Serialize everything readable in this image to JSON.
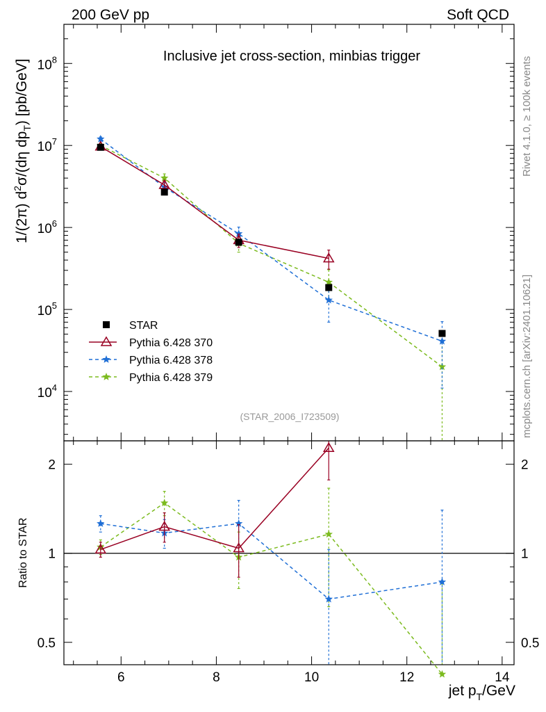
{
  "header": {
    "left": "200 GeV pp",
    "right": "Soft QCD"
  },
  "side_labels": {
    "rivet": "Rivet 4.1.0, ≥ 100k events",
    "mcplots": "mcplots.cern.ch [arXiv:2401.10621]"
  },
  "colors": {
    "star": "#000000",
    "p370": "#990022",
    "p378": "#1f6fd6",
    "p379": "#7cbb1f"
  },
  "chart_data": [
    {
      "type": "line",
      "title": "Inclusive jet cross-section, minbias trigger",
      "watermark": "(STAR_2006_I723509)",
      "xlabel": "jet p_T/GeV",
      "ylabel": "1/(2π)  d²σ/(dη dp_T) [pb/GeV]",
      "yscale": "log",
      "xlim": [
        4.8,
        14.25
      ],
      "ylim": [
        2500,
        300000000
      ],
      "xticks": [
        6,
        8,
        10,
        12,
        14
      ],
      "yticks": [
        {
          "value": 10000,
          "label": "10^4"
        },
        {
          "value": 100000,
          "label": "10^5"
        },
        {
          "value": 1000000,
          "label": "10^6"
        },
        {
          "value": 10000000,
          "label": "10^7"
        },
        {
          "value": 100000000,
          "label": "10^8"
        }
      ],
      "legend": {
        "position": "bottom-left",
        "entries": [
          {
            "key": "star",
            "label": "STAR"
          },
          {
            "key": "p370",
            "label": "Pythia 6.428 370"
          },
          {
            "key": "p378",
            "label": "Pythia 6.428 378"
          },
          {
            "key": "p379",
            "label": "Pythia 6.428 379"
          }
        ]
      },
      "series": [
        {
          "key": "star",
          "name": "STAR",
          "marker": "square",
          "line": "none",
          "x": [
            5.57,
            6.91,
            8.47,
            10.36,
            12.74
          ],
          "y": [
            9500000,
            2700000,
            660000,
            185000,
            51000
          ],
          "err": [
            0,
            0,
            0,
            0,
            0
          ]
        },
        {
          "key": "p370",
          "name": "Pythia 6.428 370",
          "marker": "triangle",
          "line": "solid",
          "x": [
            5.57,
            6.91,
            8.47,
            10.36
          ],
          "y": [
            9700000,
            3300000,
            700000,
            420000
          ],
          "err": [
            600000,
            400000,
            130000,
            110000
          ]
        },
        {
          "key": "p378",
          "name": "Pythia 6.428 378",
          "marker": "star",
          "line": "dashed",
          "x": [
            5.57,
            6.91,
            8.47,
            10.36,
            12.74
          ],
          "y": [
            12000000,
            3100000,
            840000,
            130000,
            41000
          ],
          "err": [
            700000,
            400000,
            170000,
            60000,
            30000
          ]
        },
        {
          "key": "p379",
          "name": "Pythia 6.428 379",
          "marker": "star",
          "line": "dashed",
          "x": [
            5.57,
            6.91,
            8.47,
            10.36,
            12.74
          ],
          "y": [
            10000000,
            4000000,
            640000,
            215000,
            20000
          ],
          "err": [
            600000,
            500000,
            140000,
            90000,
            20000
          ]
        }
      ]
    },
    {
      "type": "line",
      "title": "",
      "xlabel": "jet p_T/GeV",
      "ylabel": "Ratio to STAR",
      "yscale": "log",
      "xlim": [
        4.8,
        14.25
      ],
      "ylim": [
        0.42,
        2.4
      ],
      "xticks": [
        6,
        8,
        10,
        12,
        14
      ],
      "yticks": [
        {
          "value": 0.5,
          "label": "0.5"
        },
        {
          "value": 1,
          "label": "1"
        },
        {
          "value": 2,
          "label": "2"
        }
      ],
      "reference_line": 1,
      "series": [
        {
          "key": "p370",
          "name": "Pythia 6.428 370",
          "marker": "triangle",
          "line": "solid",
          "x": [
            5.57,
            6.91,
            8.47,
            10.36
          ],
          "y": [
            1.03,
            1.23,
            1.04,
            2.27
          ],
          "err": [
            0.06,
            0.14,
            0.21,
            0.5
          ]
        },
        {
          "key": "p378",
          "name": "Pythia 6.428 378",
          "marker": "star",
          "line": "dashed",
          "x": [
            5.57,
            6.91,
            8.47,
            10.36,
            12.74
          ],
          "y": [
            1.26,
            1.17,
            1.26,
            0.7,
            0.8
          ],
          "err": [
            0.08,
            0.13,
            0.25,
            0.33,
            0.6
          ]
        },
        {
          "key": "p379",
          "name": "Pythia 6.428 379",
          "marker": "star",
          "line": "dashed",
          "x": [
            5.57,
            6.91,
            8.47,
            10.36,
            12.74
          ],
          "y": [
            1.05,
            1.48,
            0.97,
            1.16,
            0.39
          ],
          "err": [
            0.06,
            0.14,
            0.21,
            0.5,
            0.4
          ]
        }
      ]
    }
  ]
}
